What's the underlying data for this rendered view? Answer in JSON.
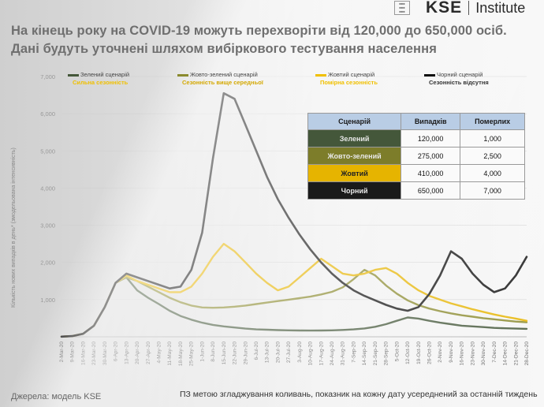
{
  "header": {
    "title": "На кінець року на COVID-19 можуть перехворіти від 120,000 до 650,000 осіб. Дані будуть уточнені шляхом вибіркового тестування населення",
    "logo_kse": "KSE",
    "logo_institute": "Institute"
  },
  "legend": [
    {
      "name": "Зелений сценарій",
      "sub": "Сильна сезонність",
      "color": "#44573a",
      "sub_color": "#f0c000"
    },
    {
      "name": "Жовто-зелений сценарій",
      "sub": "Сезонність вище середньої",
      "color": "#8a8a2e",
      "sub_color": "#d4a800"
    },
    {
      "name": "Жовтий сценарій",
      "sub": "Помірна сезонність",
      "color": "#f0c000",
      "sub_color": "#f0c000"
    },
    {
      "name": "Чорний сценарій",
      "sub": "Сезонність відсутня",
      "color": "#111111",
      "sub_color": "#333333"
    }
  ],
  "table": {
    "headers": [
      "Сценарій",
      "Випадків",
      "Померлих"
    ],
    "rows": [
      {
        "name": "Зелений",
        "cases": "120,000",
        "deaths": "1,000",
        "bg": "#44573a",
        "fg": "#e8e8e8"
      },
      {
        "name": "Жовто-зелений",
        "cases": "275,000",
        "deaths": "2,500",
        "bg": "#7d7d2a",
        "fg": "#e8e8e8"
      },
      {
        "name": "Жовтий",
        "cases": "410,000",
        "deaths": "4,000",
        "bg": "#e6b400",
        "fg": "#222222"
      },
      {
        "name": "Чорний",
        "cases": "650,000",
        "deaths": "7,000",
        "bg": "#1a1a1a",
        "fg": "#e8e8e8"
      }
    ]
  },
  "footer": {
    "source": "Джерела: модель KSE",
    "note": "ПЗ метою згладжування коливань, показник на кожну дату усереднений за останній тиждень"
  },
  "chart_data": {
    "type": "line",
    "ylabel": "Кількість нових випадків в день* (змодельована інтенсивність)",
    "ylim": [
      0,
      7000
    ],
    "yticks": [
      0,
      1000,
      2000,
      3000,
      4000,
      5000,
      6000,
      7000
    ],
    "ytick_labels": [
      "",
      "1,000",
      "2,000",
      "3,000",
      "4,000",
      "5,000",
      "6,000",
      "7,000"
    ],
    "x": [
      "2-Mar-20",
      "9-Mar-20",
      "16-Mar-20",
      "23-Mar-20",
      "30-Mar-20",
      "6-Apr-20",
      "13-Apr-20",
      "20-Apr-20",
      "27-Apr-20",
      "4-May-20",
      "11-May-20",
      "18-May-20",
      "25-May-20",
      "1-Jun-20",
      "8-Jun-20",
      "15-Jun-20",
      "22-Jun-20",
      "29-Jun-20",
      "6-Jul-20",
      "13-Jul-20",
      "20-Jul-20",
      "27-Jul-20",
      "3-Aug-20",
      "10-Aug-20",
      "17-Aug-20",
      "24-Aug-20",
      "31-Aug-20",
      "7-Sep-20",
      "14-Sep-20",
      "21-Sep-20",
      "28-Sep-20",
      "5-Oct-20",
      "12-Oct-20",
      "19-Oct-20",
      "26-Oct-20",
      "2-Nov-20",
      "9-Nov-20",
      "16-Nov-20",
      "23-Nov-20",
      "30-Nov-20",
      "7-Dec-20",
      "14-Dec-20",
      "21-Dec-20",
      "28-Dec-20"
    ],
    "series": [
      {
        "name": "Зелений сценарій",
        "color": "#44573a",
        "values": [
          5,
          20,
          80,
          300,
          800,
          1450,
          1600,
          1250,
          1050,
          880,
          700,
          560,
          460,
          380,
          320,
          280,
          250,
          220,
          200,
          190,
          180,
          175,
          170,
          168,
          170,
          175,
          185,
          200,
          225,
          270,
          340,
          430,
          520,
          490,
          430,
          380,
          340,
          300,
          280,
          260,
          240,
          230,
          220,
          215
        ]
      },
      {
        "name": "Жовто-зелений сценарій",
        "color": "#8a8a2e",
        "values": [
          5,
          20,
          80,
          300,
          800,
          1450,
          1600,
          1500,
          1350,
          1200,
          1050,
          930,
          840,
          790,
          780,
          790,
          810,
          840,
          880,
          920,
          960,
          1000,
          1040,
          1080,
          1140,
          1210,
          1330,
          1550,
          1800,
          1650,
          1380,
          1160,
          980,
          850,
          760,
          690,
          630,
          580,
          540,
          500,
          470,
          440,
          410,
          390
        ]
      },
      {
        "name": "Жовтий сценарій",
        "color": "#e6b400",
        "values": [
          5,
          20,
          80,
          300,
          800,
          1450,
          1650,
          1500,
          1400,
          1300,
          1200,
          1200,
          1350,
          1700,
          2150,
          2500,
          2300,
          2000,
          1700,
          1450,
          1250,
          1350,
          1600,
          1850,
          2100,
          1900,
          1700,
          1650,
          1700,
          1800,
          1850,
          1700,
          1450,
          1250,
          1100,
          1000,
          900,
          820,
          740,
          670,
          600,
          540,
          490,
          430
        ]
      },
      {
        "name": "Чорний сценарій",
        "color": "#111111",
        "values": [
          5,
          20,
          80,
          300,
          800,
          1450,
          1700,
          1600,
          1500,
          1400,
          1300,
          1350,
          1800,
          2800,
          4800,
          6550,
          6400,
          5700,
          5000,
          4300,
          3700,
          3200,
          2750,
          2350,
          2000,
          1700,
          1450,
          1250,
          1100,
          980,
          860,
          760,
          700,
          800,
          1150,
          1650,
          2300,
          2100,
          1700,
          1400,
          1200,
          1300,
          1650,
          2150
        ]
      }
    ]
  }
}
